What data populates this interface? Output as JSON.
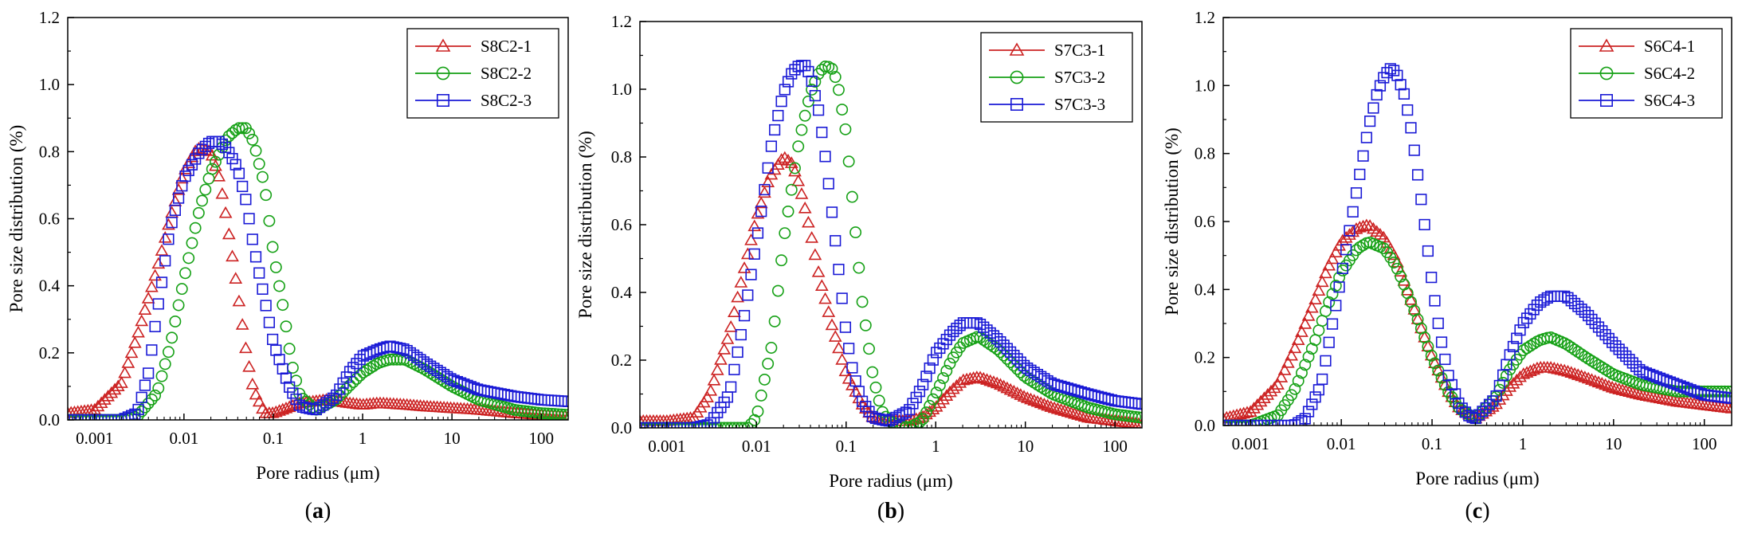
{
  "colors": {
    "series1": "#cc2222",
    "series2": "#16a116",
    "series3": "#1a1ad6",
    "axis": "#000000"
  },
  "chart_data": [
    {
      "type": "scatter",
      "panel_label": "(a)",
      "xlabel": "Pore radius (μm)",
      "ylabel": "Pore size distribution (%)",
      "xscale": "log",
      "xlim": [
        0.0005,
        200
      ],
      "ylim": [
        0,
        1.2
      ],
      "xticks": [
        "0.001",
        "0.01",
        "0.1",
        "1",
        "10",
        "100"
      ],
      "yticks": [
        "0.0",
        "0.2",
        "0.4",
        "0.6",
        "0.8",
        "1.0",
        "1.2"
      ],
      "legend_position": "top-right",
      "series": [
        {
          "name": "S8C2-1",
          "marker": "triangle",
          "x": [
            0.0005,
            0.001,
            0.002,
            0.003,
            0.005,
            0.007,
            0.01,
            0.014,
            0.02,
            0.025,
            0.03,
            0.04,
            0.05,
            0.06,
            0.08,
            0.1,
            0.2,
            0.4,
            0.7,
            1,
            1.5,
            2,
            3,
            5,
            10,
            20,
            50,
            100,
            200
          ],
          "values": [
            0.02,
            0.03,
            0.11,
            0.25,
            0.45,
            0.6,
            0.74,
            0.81,
            0.8,
            0.72,
            0.6,
            0.38,
            0.2,
            0.09,
            0.02,
            0.02,
            0.05,
            0.06,
            0.05,
            0.045,
            0.05,
            0.048,
            0.045,
            0.04,
            0.035,
            0.03,
            0.02,
            0.015,
            0.01
          ]
        },
        {
          "name": "S8C2-2",
          "marker": "circle",
          "x": [
            0.0005,
            0.001,
            0.002,
            0.003,
            0.005,
            0.007,
            0.01,
            0.015,
            0.02,
            0.03,
            0.04,
            0.05,
            0.06,
            0.08,
            0.1,
            0.13,
            0.16,
            0.2,
            0.3,
            0.5,
            0.7,
            1,
            1.5,
            2,
            3,
            5,
            10,
            20,
            50,
            100,
            200
          ],
          "values": [
            0.0,
            0.0,
            0.0,
            0.01,
            0.08,
            0.22,
            0.42,
            0.63,
            0.74,
            0.84,
            0.87,
            0.87,
            0.83,
            0.7,
            0.5,
            0.33,
            0.17,
            0.07,
            0.03,
            0.06,
            0.1,
            0.14,
            0.17,
            0.18,
            0.18,
            0.15,
            0.1,
            0.06,
            0.03,
            0.02,
            0.015
          ]
        },
        {
          "name": "S8C2-3",
          "marker": "square",
          "x": [
            0.0005,
            0.001,
            0.002,
            0.003,
            0.004,
            0.005,
            0.007,
            0.01,
            0.015,
            0.02,
            0.025,
            0.03,
            0.04,
            0.05,
            0.06,
            0.08,
            0.1,
            0.15,
            0.2,
            0.3,
            0.5,
            0.7,
            1,
            1.5,
            2,
            3,
            5,
            10,
            20,
            50,
            100,
            200
          ],
          "values": [
            0.0,
            0.0,
            0.0,
            0.02,
            0.14,
            0.32,
            0.57,
            0.72,
            0.8,
            0.83,
            0.83,
            0.81,
            0.75,
            0.65,
            0.52,
            0.36,
            0.23,
            0.1,
            0.04,
            0.03,
            0.07,
            0.14,
            0.19,
            0.21,
            0.22,
            0.21,
            0.17,
            0.12,
            0.09,
            0.07,
            0.06,
            0.055
          ]
        }
      ]
    },
    {
      "type": "scatter",
      "panel_label": "(b)",
      "xlabel": "Pore radius (μm)",
      "ylabel": "Pore size distribution (%)",
      "xscale": "log",
      "xlim": [
        0.0005,
        200
      ],
      "ylim": [
        0,
        1.2
      ],
      "xticks": [
        "0.001",
        "0.01",
        "0.1",
        "1",
        "10",
        "100"
      ],
      "yticks": [
        "0.0",
        "0.2",
        "0.4",
        "0.6",
        "0.8",
        "1.0",
        "1.2"
      ],
      "legend_position": "top-right",
      "series": [
        {
          "name": "S7C3-1",
          "marker": "triangle",
          "x": [
            0.0005,
            0.001,
            0.002,
            0.003,
            0.005,
            0.007,
            0.01,
            0.014,
            0.02,
            0.025,
            0.03,
            0.04,
            0.05,
            0.07,
            0.1,
            0.15,
            0.2,
            0.3,
            0.5,
            0.7,
            1,
            1.5,
            2,
            3,
            5,
            10,
            20,
            50,
            100,
            200
          ],
          "values": [
            0.02,
            0.02,
            0.03,
            0.1,
            0.28,
            0.45,
            0.62,
            0.74,
            0.8,
            0.78,
            0.72,
            0.58,
            0.45,
            0.3,
            0.16,
            0.07,
            0.03,
            0.02,
            0.02,
            0.03,
            0.06,
            0.11,
            0.14,
            0.15,
            0.13,
            0.09,
            0.06,
            0.03,
            0.02,
            0.01
          ]
        },
        {
          "name": "S7C3-2",
          "marker": "circle",
          "x": [
            0.0005,
            0.001,
            0.003,
            0.005,
            0.008,
            0.01,
            0.015,
            0.02,
            0.03,
            0.04,
            0.05,
            0.06,
            0.07,
            0.08,
            0.1,
            0.12,
            0.15,
            0.2,
            0.25,
            0.3,
            0.5,
            0.7,
            1,
            1.5,
            2,
            3,
            5,
            10,
            20,
            50,
            100,
            200
          ],
          "values": [
            0.0,
            0.0,
            0.0,
            0.0,
            0.0,
            0.03,
            0.25,
            0.55,
            0.85,
            0.99,
            1.05,
            1.07,
            1.06,
            1.02,
            0.87,
            0.65,
            0.38,
            0.15,
            0.05,
            0.02,
            0.0,
            0.02,
            0.1,
            0.2,
            0.25,
            0.27,
            0.23,
            0.15,
            0.1,
            0.06,
            0.04,
            0.03
          ]
        },
        {
          "name": "S7C3-3",
          "marker": "square",
          "x": [
            0.0005,
            0.001,
            0.002,
            0.003,
            0.005,
            0.007,
            0.01,
            0.015,
            0.02,
            0.025,
            0.03,
            0.035,
            0.04,
            0.05,
            0.06,
            0.08,
            0.1,
            0.12,
            0.15,
            0.2,
            0.3,
            0.5,
            0.7,
            1,
            1.5,
            2,
            3,
            5,
            10,
            20,
            50,
            100,
            200
          ],
          "values": [
            0.0,
            0.0,
            0.0,
            0.01,
            0.1,
            0.3,
            0.55,
            0.85,
            0.99,
            1.05,
            1.07,
            1.07,
            1.04,
            0.93,
            0.78,
            0.5,
            0.28,
            0.16,
            0.08,
            0.03,
            0.02,
            0.05,
            0.12,
            0.22,
            0.28,
            0.31,
            0.31,
            0.26,
            0.18,
            0.13,
            0.1,
            0.08,
            0.07
          ]
        }
      ]
    },
    {
      "type": "scatter",
      "panel_label": "(c)",
      "xlabel": "Pore radius (μm)",
      "ylabel": "Pore size distribution (%)",
      "xscale": "log",
      "xlim": [
        0.0005,
        200
      ],
      "ylim": [
        0,
        1.2
      ],
      "xticks": [
        "0.001",
        "0.01",
        "0.1",
        "1",
        "10",
        "100"
      ],
      "yticks": [
        "0.0",
        "0.2",
        "0.4",
        "0.6",
        "0.8",
        "1.0",
        "1.2"
      ],
      "legend_position": "top-right",
      "series": [
        {
          "name": "S6C4-1",
          "marker": "triangle",
          "x": [
            0.0005,
            0.001,
            0.002,
            0.003,
            0.005,
            0.007,
            0.01,
            0.015,
            0.02,
            0.03,
            0.04,
            0.05,
            0.07,
            0.1,
            0.15,
            0.2,
            0.3,
            0.5,
            0.7,
            1,
            1.5,
            2,
            3,
            5,
            10,
            20,
            50,
            100,
            200
          ],
          "values": [
            0.02,
            0.04,
            0.12,
            0.22,
            0.36,
            0.46,
            0.54,
            0.58,
            0.59,
            0.55,
            0.49,
            0.42,
            0.31,
            0.2,
            0.1,
            0.05,
            0.02,
            0.06,
            0.11,
            0.15,
            0.17,
            0.17,
            0.16,
            0.14,
            0.11,
            0.09,
            0.07,
            0.06,
            0.05
          ]
        },
        {
          "name": "S6C4-2",
          "marker": "circle",
          "x": [
            0.0005,
            0.001,
            0.002,
            0.003,
            0.005,
            0.007,
            0.01,
            0.015,
            0.02,
            0.03,
            0.04,
            0.05,
            0.07,
            0.1,
            0.15,
            0.2,
            0.3,
            0.5,
            0.7,
            1,
            1.5,
            2,
            3,
            5,
            10,
            20,
            50,
            100,
            200
          ],
          "values": [
            0.0,
            0.0,
            0.03,
            0.1,
            0.24,
            0.35,
            0.45,
            0.52,
            0.54,
            0.52,
            0.47,
            0.41,
            0.31,
            0.2,
            0.1,
            0.05,
            0.02,
            0.08,
            0.16,
            0.22,
            0.25,
            0.26,
            0.24,
            0.2,
            0.15,
            0.12,
            0.1,
            0.1,
            0.1
          ]
        },
        {
          "name": "S6C4-3",
          "marker": "square",
          "x": [
            0.0005,
            0.001,
            0.002,
            0.003,
            0.004,
            0.006,
            0.008,
            0.01,
            0.015,
            0.02,
            0.025,
            0.03,
            0.035,
            0.04,
            0.05,
            0.06,
            0.08,
            0.1,
            0.12,
            0.15,
            0.2,
            0.25,
            0.3,
            0.5,
            0.7,
            1,
            1.5,
            2,
            3,
            5,
            10,
            20,
            50,
            100,
            200
          ],
          "values": [
            0.0,
            0.0,
            0.0,
            0.0,
            0.02,
            0.12,
            0.3,
            0.44,
            0.7,
            0.88,
            0.98,
            1.03,
            1.05,
            1.04,
            0.97,
            0.86,
            0.62,
            0.42,
            0.28,
            0.15,
            0.06,
            0.03,
            0.02,
            0.08,
            0.2,
            0.3,
            0.36,
            0.38,
            0.38,
            0.33,
            0.24,
            0.16,
            0.12,
            0.09,
            0.08
          ]
        }
      ]
    }
  ]
}
